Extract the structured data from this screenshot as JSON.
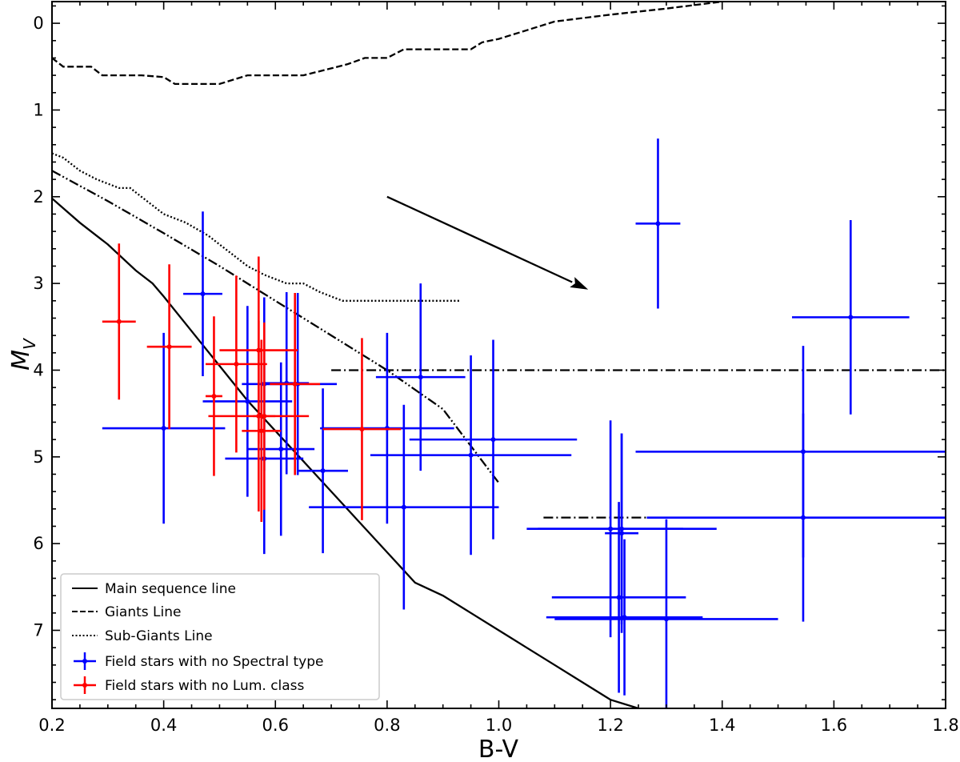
{
  "chart_data": {
    "type": "scatter",
    "xlabel": "B-V",
    "ylabel_main": "M",
    "ylabel_sub": "V",
    "xlim": [
      0.2,
      1.8
    ],
    "ylim": [
      -0.25,
      7.9
    ],
    "y_inverted": true,
    "xticks": [
      0.2,
      0.4,
      0.6,
      0.8,
      1.0,
      1.2,
      1.4,
      1.6,
      1.8
    ],
    "xtick_labels": [
      "0.2",
      "0.4",
      "0.6",
      "0.8",
      "1.0",
      "1.2",
      "1.4",
      "1.6",
      "1.8"
    ],
    "yticks": [
      0,
      1,
      2,
      3,
      4,
      5,
      6,
      7
    ],
    "ytick_labels": [
      "0",
      "1",
      "2",
      "3",
      "4",
      "5",
      "6",
      "7"
    ],
    "lines": [
      {
        "name": "Main sequence line",
        "style": "solid",
        "color": "#000000",
        "points": [
          [
            0.2,
            2.02
          ],
          [
            0.25,
            2.3
          ],
          [
            0.3,
            2.55
          ],
          [
            0.35,
            2.85
          ],
          [
            0.38,
            3.0
          ],
          [
            0.4,
            3.15
          ],
          [
            0.45,
            3.55
          ],
          [
            0.5,
            3.95
          ],
          [
            0.55,
            4.35
          ],
          [
            0.6,
            4.7
          ],
          [
            0.65,
            5.05
          ],
          [
            0.7,
            5.4
          ],
          [
            0.75,
            5.75
          ],
          [
            0.8,
            6.1
          ],
          [
            0.85,
            6.45
          ],
          [
            0.9,
            6.6
          ],
          [
            0.95,
            6.8
          ],
          [
            1.0,
            7.0
          ],
          [
            1.05,
            7.2
          ],
          [
            1.1,
            7.4
          ],
          [
            1.15,
            7.6
          ],
          [
            1.2,
            7.8
          ],
          [
            1.25,
            7.9
          ]
        ]
      },
      {
        "name": "Giants Line",
        "style": "dashed",
        "color": "#000000",
        "points": [
          [
            0.2,
            0.4
          ],
          [
            0.22,
            0.5
          ],
          [
            0.27,
            0.5
          ],
          [
            0.29,
            0.6
          ],
          [
            0.32,
            0.6
          ],
          [
            0.36,
            0.6
          ],
          [
            0.4,
            0.62
          ],
          [
            0.42,
            0.7
          ],
          [
            0.45,
            0.7
          ],
          [
            0.5,
            0.7
          ],
          [
            0.55,
            0.6
          ],
          [
            0.6,
            0.6
          ],
          [
            0.65,
            0.6
          ],
          [
            0.7,
            0.52
          ],
          [
            0.73,
            0.47
          ],
          [
            0.76,
            0.4
          ],
          [
            0.8,
            0.4
          ],
          [
            0.83,
            0.3
          ],
          [
            0.9,
            0.3
          ],
          [
            0.95,
            0.3
          ],
          [
            0.97,
            0.22
          ],
          [
            1.0,
            0.18
          ],
          [
            1.05,
            0.08
          ],
          [
            1.1,
            -0.02
          ],
          [
            1.2,
            -0.1
          ],
          [
            1.3,
            -0.17
          ],
          [
            1.4,
            -0.25
          ]
        ]
      },
      {
        "name": "Sub-Giants Line",
        "style": "dotted",
        "color": "#000000",
        "points": [
          [
            0.2,
            1.5
          ],
          [
            0.22,
            1.55
          ],
          [
            0.25,
            1.7
          ],
          [
            0.28,
            1.8
          ],
          [
            0.32,
            1.9
          ],
          [
            0.34,
            1.9
          ],
          [
            0.36,
            2.0
          ],
          [
            0.4,
            2.2
          ],
          [
            0.44,
            2.3
          ],
          [
            0.48,
            2.45
          ],
          [
            0.5,
            2.55
          ],
          [
            0.53,
            2.7
          ],
          [
            0.55,
            2.8
          ],
          [
            0.58,
            2.9
          ],
          [
            0.62,
            3.0
          ],
          [
            0.65,
            3.0
          ],
          [
            0.68,
            3.1
          ],
          [
            0.72,
            3.2
          ],
          [
            0.8,
            3.2
          ],
          [
            0.9,
            3.2
          ],
          [
            0.93,
            3.2
          ]
        ]
      },
      {
        "name": "",
        "style": "dashdotdot",
        "color": "#000000",
        "points": [
          [
            0.2,
            1.7
          ],
          [
            0.3,
            2.05
          ],
          [
            0.4,
            2.42
          ],
          [
            0.5,
            2.8
          ],
          [
            0.6,
            3.2
          ],
          [
            0.7,
            3.6
          ],
          [
            0.8,
            4.0
          ],
          [
            0.9,
            4.45
          ],
          [
            1.0,
            5.3
          ]
        ]
      },
      {
        "name": "",
        "style": "dashdot",
        "color": "#000000",
        "points": [
          [
            0.7,
            4.0
          ],
          [
            1.8,
            4.0
          ]
        ]
      },
      {
        "name": "",
        "style": "dashdot",
        "color": "#000000",
        "points": [
          [
            1.08,
            5.7
          ],
          [
            1.8,
            5.7
          ]
        ]
      }
    ],
    "arrow": {
      "from": [
        0.8,
        2.0
      ],
      "to": [
        1.16,
        3.07
      ]
    },
    "series": [
      {
        "name": "Field stars with no Spectral type",
        "color": "#0000ff",
        "points": [
          {
            "x": 0.4,
            "y": 4.67,
            "xerr": 0.11,
            "yerr": 1.1
          },
          {
            "x": 0.47,
            "y": 3.12,
            "xerr": 0.035,
            "yerr": 0.95
          },
          {
            "x": 0.55,
            "y": 4.36,
            "xerr": 0.08,
            "yerr": 1.1
          },
          {
            "x": 0.58,
            "y": 5.02,
            "xerr": 0.07,
            "yerr": 1.1
          },
          {
            "x": 0.58,
            "y": 4.16,
            "xerr": 0.04,
            "yerr": 1.0
          },
          {
            "x": 0.61,
            "y": 4.91,
            "xerr": 0.06,
            "yerr": 1.0
          },
          {
            "x": 0.62,
            "y": 4.15,
            "xerr": 0.04,
            "yerr": 1.05
          },
          {
            "x": 0.64,
            "y": 4.16,
            "xerr": 0.07,
            "yerr": 1.05
          },
          {
            "x": 0.685,
            "y": 5.16,
            "xerr": 0.045,
            "yerr": 0.95
          },
          {
            "x": 0.8,
            "y": 4.67,
            "xerr": 0.12,
            "yerr": 1.1
          },
          {
            "x": 0.83,
            "y": 5.58,
            "xerr": 0.17,
            "yerr": 1.18
          },
          {
            "x": 0.86,
            "y": 4.08,
            "xerr": 0.08,
            "yerr": 1.08
          },
          {
            "x": 0.95,
            "y": 4.98,
            "xerr": 0.18,
            "yerr": 1.15
          },
          {
            "x": 0.99,
            "y": 4.8,
            "xerr": 0.15,
            "yerr": 1.15
          },
          {
            "x": 1.2,
            "y": 5.83,
            "xerr": 0.13,
            "yerr": 1.25
          },
          {
            "x": 1.215,
            "y": 6.62,
            "xerr": 0.12,
            "yerr": 1.1
          },
          {
            "x": 1.22,
            "y": 5.83,
            "xerr": 0.17,
            "yerr": 1.1
          },
          {
            "x": 1.225,
            "y": 6.85,
            "xerr": 0.14,
            "yerr": 0.9
          },
          {
            "x": 1.22,
            "y": 5.88,
            "xerr": 0.03,
            "yerr": 1.15
          },
          {
            "x": 1.285,
            "y": 2.31,
            "xerr": 0.04,
            "yerr": 0.98
          },
          {
            "x": 1.3,
            "y": 6.87,
            "xerr": 0.2,
            "yerr": 1.15
          },
          {
            "x": 1.545,
            "y": 5.7,
            "xerr": 0.28,
            "yerr": 1.2
          },
          {
            "x": 1.545,
            "y": 4.94,
            "xerr": 0.3,
            "yerr": 1.22
          },
          {
            "x": 1.63,
            "y": 3.39,
            "xerr": 0.105,
            "yerr": 1.12
          }
        ]
      },
      {
        "name": "Field stars with no Lum. class",
        "color": "#ff0000",
        "points": [
          {
            "x": 0.32,
            "y": 3.44,
            "xerr": 0.03,
            "yerr": 0.9
          },
          {
            "x": 0.41,
            "y": 3.73,
            "xerr": 0.04,
            "yerr": 0.95
          },
          {
            "x": 0.49,
            "y": 4.3,
            "xerr": 0.015,
            "yerr": 0.92
          },
          {
            "x": 0.53,
            "y": 3.93,
            "xerr": 0.055,
            "yerr": 1.02
          },
          {
            "x": 0.57,
            "y": 3.77,
            "xerr": 0.07,
            "yerr": 1.08
          },
          {
            "x": 0.57,
            "y": 4.53,
            "xerr": 0.09,
            "yerr": 1.1
          },
          {
            "x": 0.575,
            "y": 4.7,
            "xerr": 0.035,
            "yerr": 1.05
          },
          {
            "x": 0.58,
            "y": 4.53,
            "xerr": 0.02,
            "yerr": 1.08
          },
          {
            "x": 0.635,
            "y": 4.16,
            "xerr": 0.045,
            "yerr": 1.05
          },
          {
            "x": 0.755,
            "y": 4.68,
            "xerr": 0.07,
            "yerr": 1.05
          }
        ]
      }
    ],
    "legend": {
      "placement": "lower-left",
      "entries": [
        "Main sequence line",
        "Giants Line",
        "Sub-Giants Line",
        "Field stars with no Spectral type",
        "Field stars with no Lum. class"
      ]
    }
  }
}
